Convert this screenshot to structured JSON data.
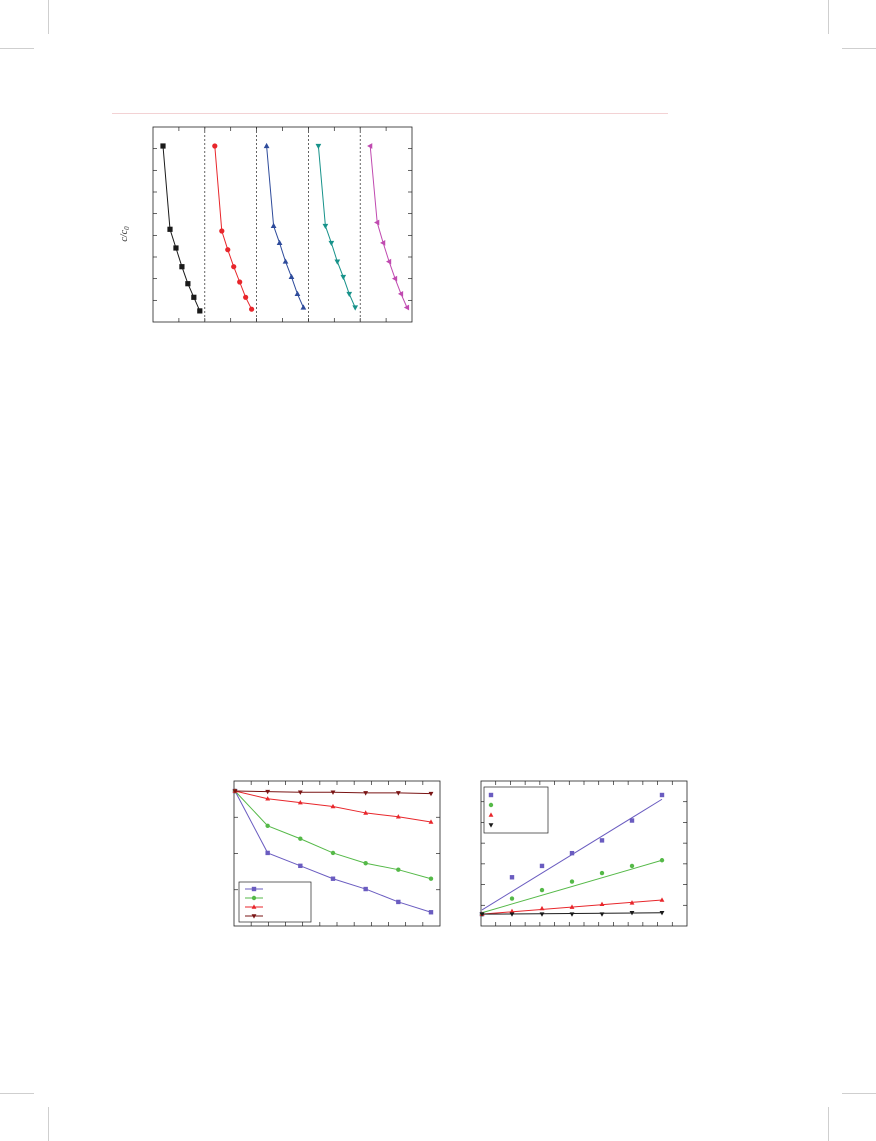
{
  "colors": {
    "black": "#1a1a1a",
    "red": "#e8262b",
    "blue": "#2e4b9b",
    "teal": "#17928a",
    "magenta": "#c04ab0",
    "purple": "#6a5cc0",
    "green": "#55b948",
    "darkred": "#7a1515"
  },
  "chart_data": [
    {
      "type": "line",
      "ylabel_main": "c/c",
      "ylabel_sub": "0",
      "ylim": [
        0,
        1
      ],
      "dividers": "dashed",
      "series": [
        {
          "marker": "square",
          "color": "#1a1a1a",
          "values": [
            1.0,
            0.51,
            0.4,
            0.29,
            0.19,
            0.11,
            0.03
          ]
        },
        {
          "marker": "circle",
          "color": "#e8262b",
          "values": [
            1.0,
            0.5,
            0.39,
            0.29,
            0.2,
            0.11,
            0.04
          ]
        },
        {
          "marker": "triangle-up",
          "color": "#2e4b9b",
          "values": [
            1.0,
            0.53,
            0.43,
            0.32,
            0.23,
            0.13,
            0.05
          ]
        },
        {
          "marker": "triangle-down",
          "color": "#17928a",
          "values": [
            1.0,
            0.53,
            0.43,
            0.32,
            0.23,
            0.13,
            0.05
          ]
        },
        {
          "marker": "triangle-left",
          "color": "#c04ab0",
          "values": [
            1.0,
            0.55,
            0.43,
            0.32,
            0.22,
            0.13,
            0.05
          ]
        }
      ]
    },
    {
      "type": "line",
      "x": [
        0,
        1,
        2,
        3,
        4,
        5,
        6
      ],
      "ylim": [
        0,
        1
      ],
      "legend_position": "bottom-left",
      "series": [
        {
          "marker": "square",
          "color": "#6a5cc0",
          "values": [
            1.0,
            0.52,
            0.42,
            0.32,
            0.24,
            0.14,
            0.06
          ]
        },
        {
          "marker": "circle",
          "color": "#55b948",
          "values": [
            1.0,
            0.73,
            0.63,
            0.52,
            0.44,
            0.39,
            0.32
          ]
        },
        {
          "marker": "triangle-up",
          "color": "#e8262b",
          "values": [
            1.0,
            0.94,
            0.91,
            0.88,
            0.83,
            0.8,
            0.76
          ]
        },
        {
          "marker": "triangle-down",
          "color": "#7a1515",
          "values": [
            1.0,
            0.995,
            0.99,
            0.99,
            0.985,
            0.985,
            0.98
          ]
        }
      ]
    },
    {
      "type": "scatter",
      "x": [
        0,
        1,
        2,
        3,
        4,
        5,
        6
      ],
      "ylim": [
        0,
        1
      ],
      "legend_position": "top-left",
      "series": [
        {
          "marker": "square",
          "color": "#6a5cc0",
          "values": [
            0.02,
            0.28,
            0.36,
            0.45,
            0.54,
            0.68,
            0.86
          ],
          "fit": [
            0.05,
            0.83
          ]
        },
        {
          "marker": "circle",
          "color": "#55b948",
          "values": [
            0.02,
            0.13,
            0.19,
            0.25,
            0.31,
            0.36,
            0.4
          ],
          "fit": [
            0.03,
            0.4
          ]
        },
        {
          "marker": "triangle-up",
          "color": "#e8262b",
          "values": [
            0.02,
            0.04,
            0.06,
            0.07,
            0.09,
            0.1,
            0.12
          ],
          "fit": [
            0.02,
            0.12
          ]
        },
        {
          "marker": "triangle-down",
          "color": "#1a1a1a",
          "values": [
            0.02,
            0.02,
            0.02,
            0.02,
            0.02,
            0.03,
            0.03
          ],
          "fit": [
            0.02,
            0.03
          ]
        }
      ]
    }
  ]
}
